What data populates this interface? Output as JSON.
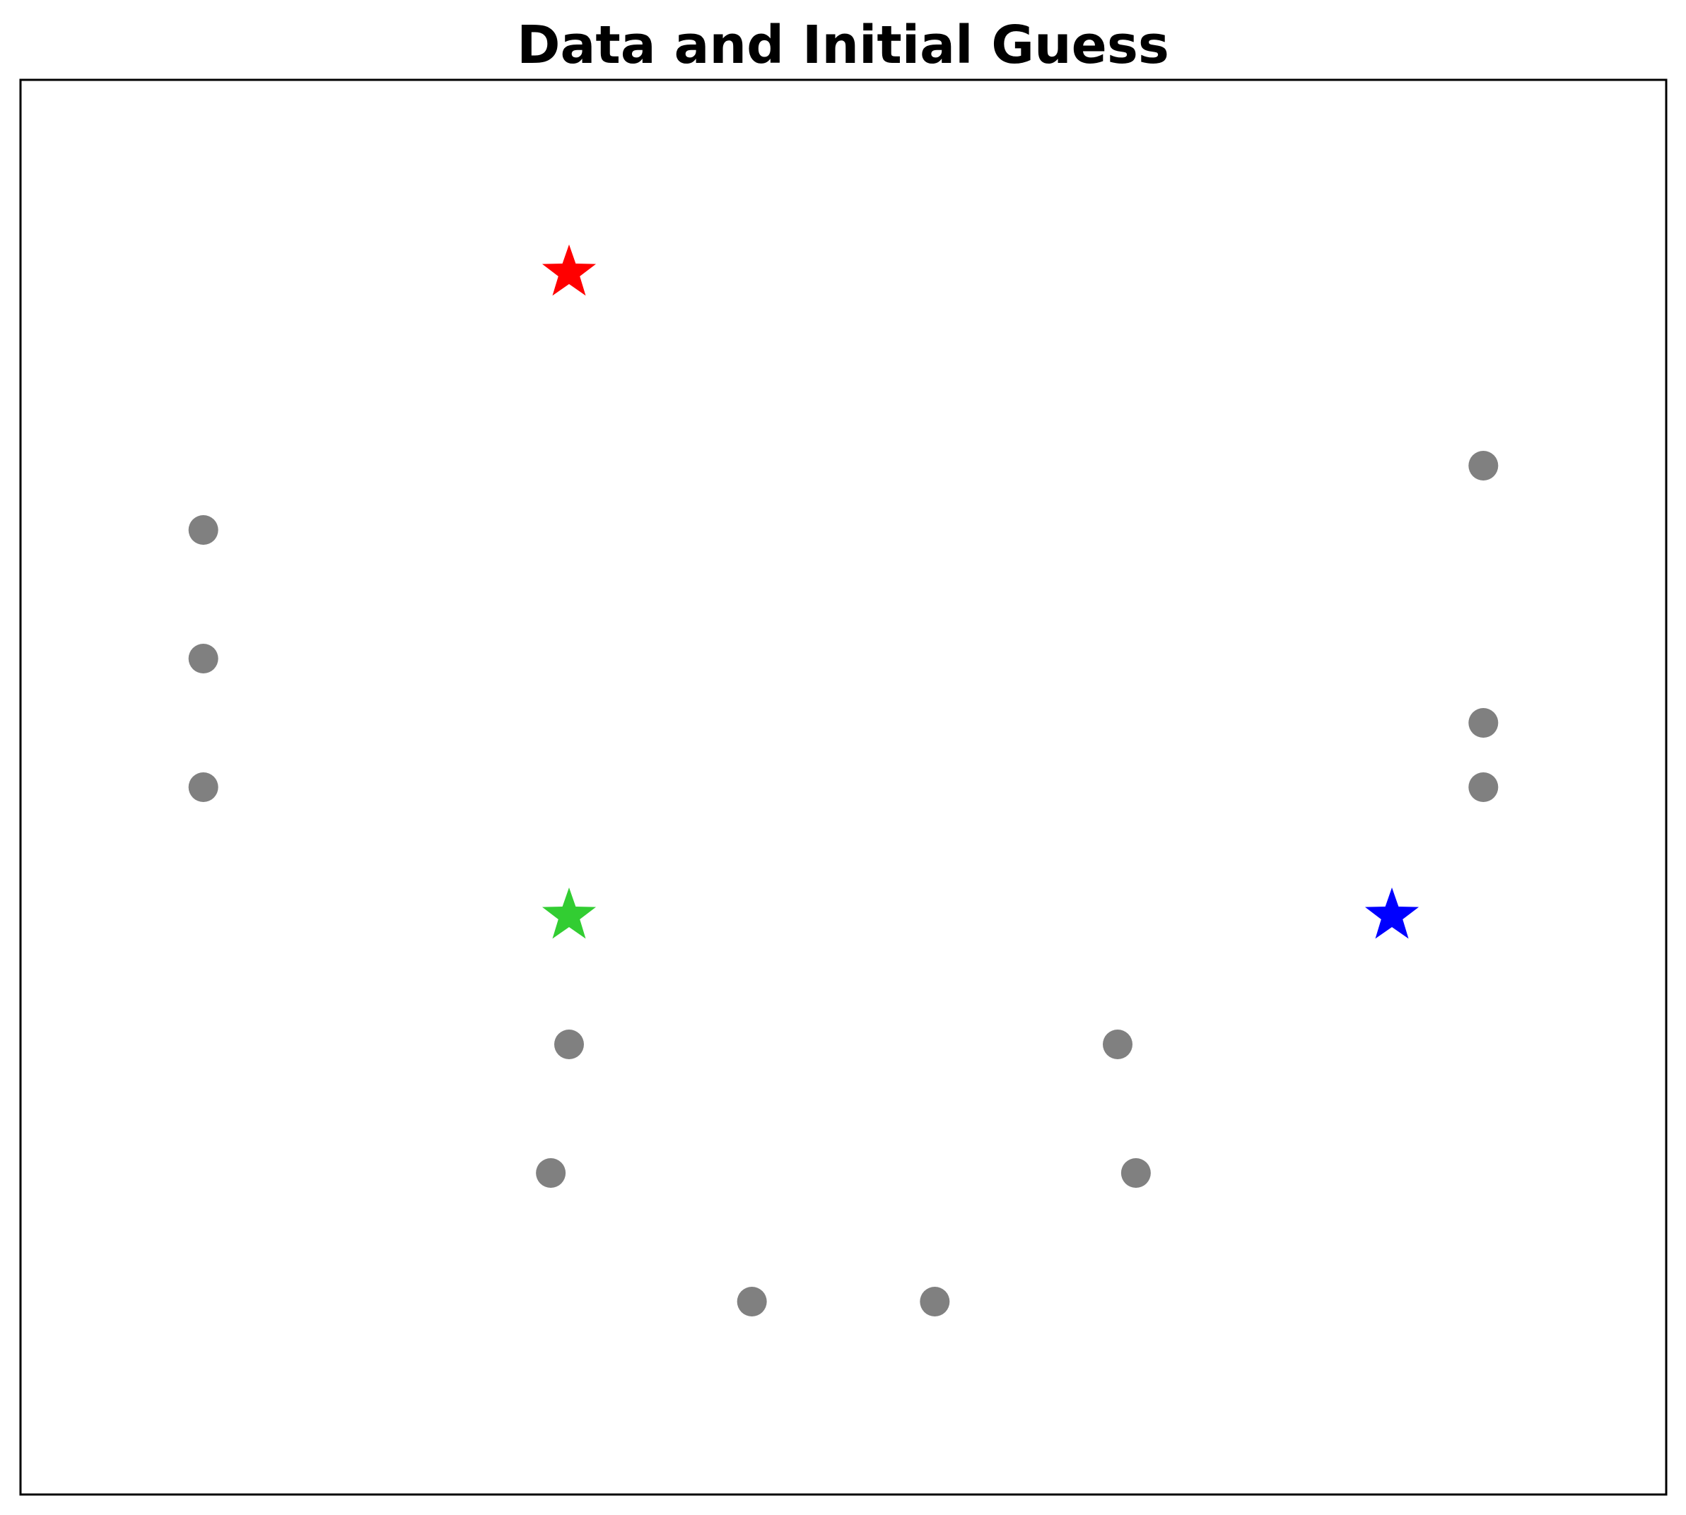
{
  "chart_data": {
    "type": "scatter",
    "title": "Data and Initial Guess",
    "xlabel": "",
    "ylabel": "",
    "xlim": [
      0,
      9
    ],
    "ylim": [
      0,
      11
    ],
    "grid": false,
    "ticks": false,
    "legend": "none",
    "series": [
      {
        "marker": "circle",
        "color": "#808080",
        "points": [
          {
            "x": 1.0,
            "y": 7.5
          },
          {
            "x": 1.0,
            "y": 6.5
          },
          {
            "x": 1.0,
            "y": 5.5
          },
          {
            "x": 3.0,
            "y": 3.5
          },
          {
            "x": 2.9,
            "y": 2.5
          },
          {
            "x": 4.0,
            "y": 1.5
          },
          {
            "x": 5.0,
            "y": 1.5
          },
          {
            "x": 6.0,
            "y": 3.5
          },
          {
            "x": 6.1,
            "y": 2.5
          },
          {
            "x": 8.0,
            "y": 8.0
          },
          {
            "x": 8.0,
            "y": 6.0
          },
          {
            "x": 8.0,
            "y": 5.5
          }
        ]
      },
      {
        "marker": "star",
        "color": "#ff0000",
        "points": [
          {
            "x": 3.0,
            "y": 9.5
          }
        ]
      },
      {
        "marker": "star",
        "color": "#32cd32",
        "points": [
          {
            "x": 3.0,
            "y": 4.5
          }
        ]
      },
      {
        "marker": "star",
        "color": "#0000ff",
        "points": [
          {
            "x": 7.5,
            "y": 4.5
          }
        ]
      }
    ]
  }
}
